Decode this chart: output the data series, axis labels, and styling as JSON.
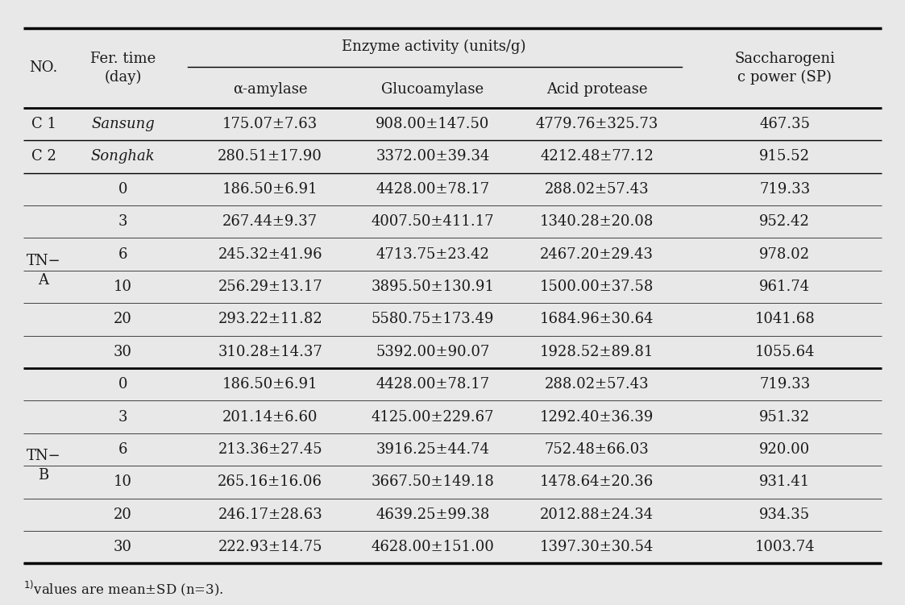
{
  "footnote_main": "values are mean±SD (n=3).",
  "rows": [
    {
      "no": "C 1",
      "fer_time": "Sansung",
      "alpha": "175.07±7.63",
      "gluco": "908.00±147.50",
      "acid": "4779.76±325.73",
      "sp": "467.35",
      "italic": true,
      "group": "c"
    },
    {
      "no": "C 2",
      "fer_time": "Songhak",
      "alpha": "280.51±17.90",
      "gluco": "3372.00±39.34",
      "acid": "4212.48±77.12",
      "sp": "915.52",
      "italic": true,
      "group": "c"
    },
    {
      "no": "TN-A",
      "fer_time": "0",
      "alpha": "186.50±6.91",
      "gluco": "4428.00±78.17",
      "acid": "288.02±57.43",
      "sp": "719.33",
      "italic": false,
      "group": "a"
    },
    {
      "no": "",
      "fer_time": "3",
      "alpha": "267.44±9.37",
      "gluco": "4007.50±411.17",
      "acid": "1340.28±20.08",
      "sp": "952.42",
      "italic": false,
      "group": "a"
    },
    {
      "no": "",
      "fer_time": "6",
      "alpha": "245.32±41.96",
      "gluco": "4713.75±23.42",
      "acid": "2467.20±29.43",
      "sp": "978.02",
      "italic": false,
      "group": "a"
    },
    {
      "no": "",
      "fer_time": "10",
      "alpha": "256.29±13.17",
      "gluco": "3895.50±130.91",
      "acid": "1500.00±37.58",
      "sp": "961.74",
      "italic": false,
      "group": "a"
    },
    {
      "no": "",
      "fer_time": "20",
      "alpha": "293.22±11.82",
      "gluco": "5580.75±173.49",
      "acid": "1684.96±30.64",
      "sp": "1041.68",
      "italic": false,
      "group": "a"
    },
    {
      "no": "",
      "fer_time": "30",
      "alpha": "310.28±14.37",
      "gluco": "5392.00±90.07",
      "acid": "1928.52±89.81",
      "sp": "1055.64",
      "italic": false,
      "group": "a"
    },
    {
      "no": "TN-B",
      "fer_time": "0",
      "alpha": "186.50±6.91",
      "gluco": "4428.00±78.17",
      "acid": "288.02±57.43",
      "sp": "719.33",
      "italic": false,
      "group": "b"
    },
    {
      "no": "",
      "fer_time": "3",
      "alpha": "201.14±6.60",
      "gluco": "4125.00±229.67",
      "acid": "1292.40±36.39",
      "sp": "951.32",
      "italic": false,
      "group": "b"
    },
    {
      "no": "",
      "fer_time": "6",
      "alpha": "213.36±27.45",
      "gluco": "3916.25±44.74",
      "acid": "752.48±66.03",
      "sp": "920.00",
      "italic": false,
      "group": "b"
    },
    {
      "no": "",
      "fer_time": "10",
      "alpha": "265.16±16.06",
      "gluco": "3667.50±149.18",
      "acid": "1478.64±20.36",
      "sp": "931.41",
      "italic": false,
      "group": "b"
    },
    {
      "no": "",
      "fer_time": "20",
      "alpha": "246.17±28.63",
      "gluco": "4639.25±99.38",
      "acid": "2012.88±24.34",
      "sp": "934.35",
      "italic": false,
      "group": "b"
    },
    {
      "no": "",
      "fer_time": "30",
      "alpha": "222.93±14.75",
      "gluco": "4628.00±151.00",
      "acid": "1397.30±30.54",
      "sp": "1003.74",
      "italic": false,
      "group": "b"
    }
  ],
  "bg_color": "#e8e8e8",
  "text_color": "#1a1a1a",
  "font_size": 13.0,
  "font_family": "serif"
}
